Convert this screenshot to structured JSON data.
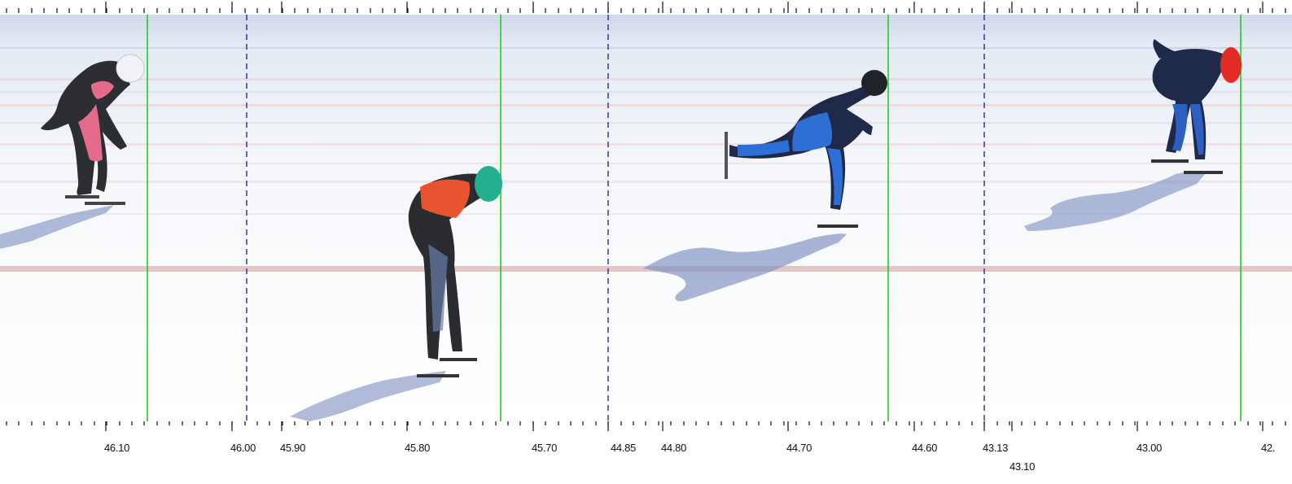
{
  "segments": [
    {
      "competitor": "Pink/black suit, white helmet",
      "helmet_color": "#f1f3f6",
      "suit_color": "#e46b8c",
      "ticks": [
        "46.10",
        "46.00"
      ]
    },
    {
      "competitor": "Red/black suit, green helmet",
      "helmet_color": "#23b08f",
      "suit_color": "#e8542f",
      "ticks": [
        "45.90",
        "45.80",
        "45.70"
      ]
    },
    {
      "competitor": "Blue/black suit, black helmet",
      "helmet_color": "#202428",
      "suit_color": "#2d6fd4",
      "ticks": [
        "44.85",
        "44.80",
        "44.70",
        "44.60"
      ]
    },
    {
      "competitor": "Blue/black suit, red helmet",
      "helmet_color": "#e42a24",
      "suit_color": "#2d5fc0",
      "ticks": [
        "43.13",
        "43.10",
        "43.00",
        "42."
      ]
    }
  ],
  "colors": {
    "finish_line": "#22cc22",
    "segment_divider": "#2a2a8a",
    "ice": "#f6f8fb",
    "sky_band": "#dfe6f1",
    "stripe_red": "#d9a0a0",
    "shadow": "#7c8ec0"
  },
  "icons": [
    "speed-skater-figure",
    "skater-shadow",
    "finish-line-marker",
    "time-tick"
  ]
}
